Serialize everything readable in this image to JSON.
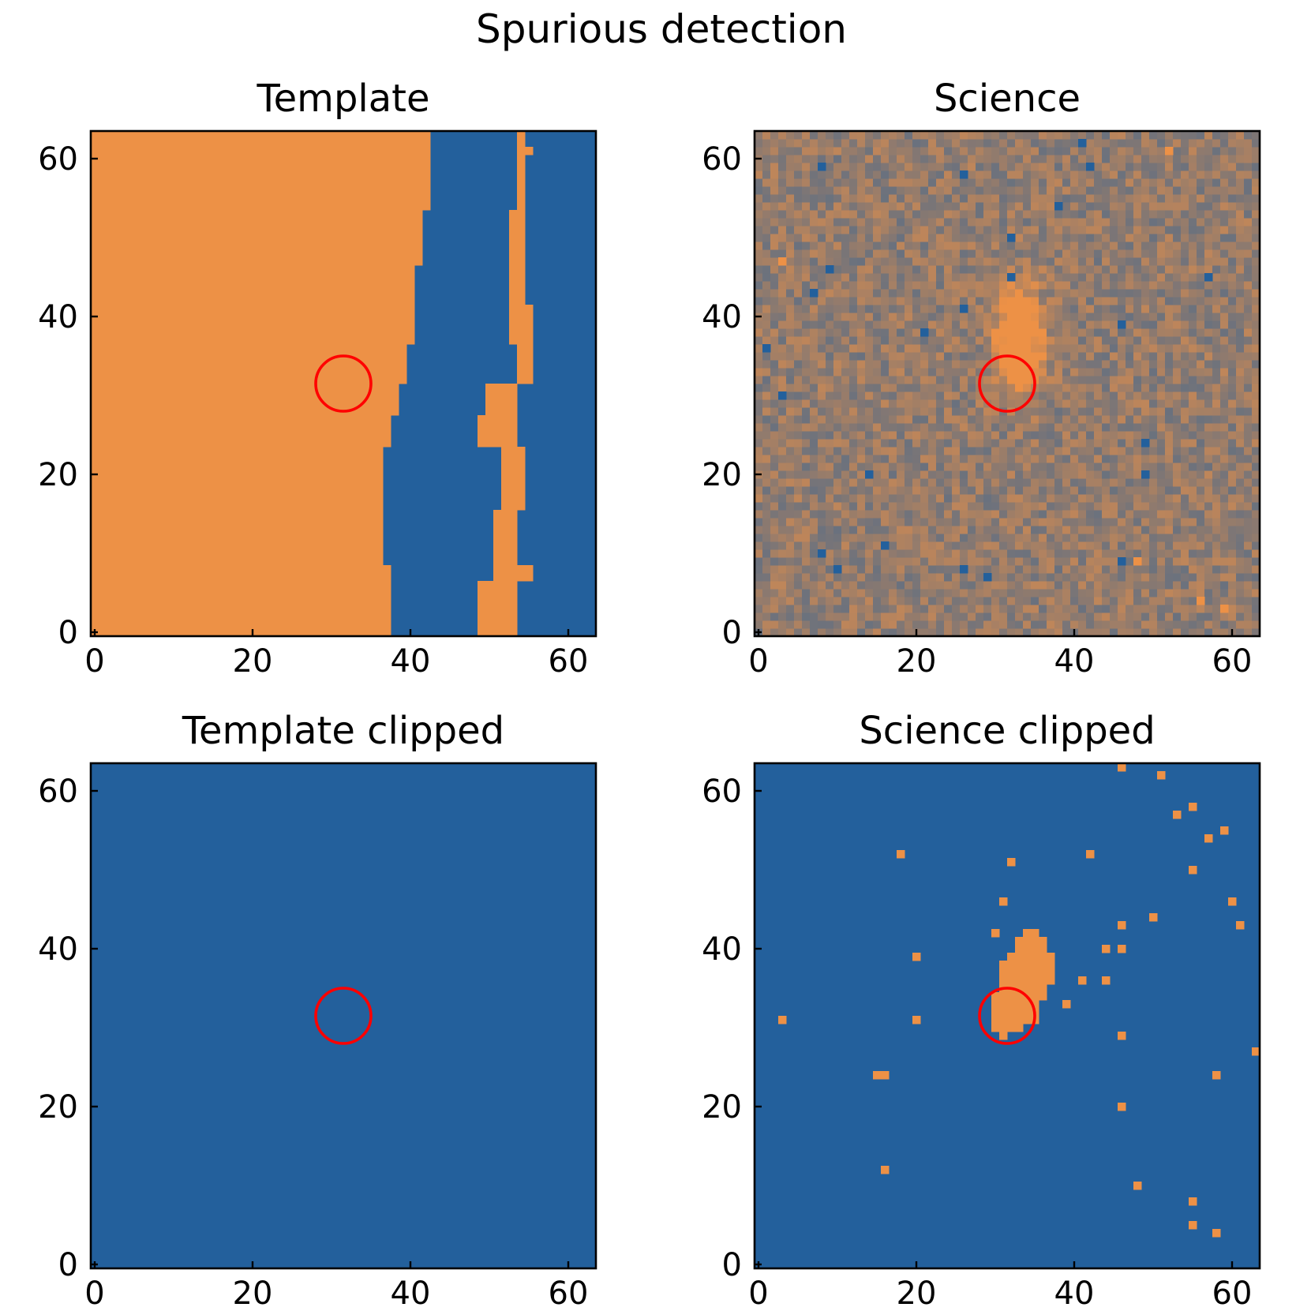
{
  "figure_title": "Spurious detection",
  "colors": {
    "low": "#23609c",
    "high": "#ed9146",
    "marker": "#ff0000",
    "axis": "#000000"
  },
  "chart_data": [
    {
      "type": "heatmap",
      "title": "Template",
      "image_size": 64,
      "xlim": [
        -0.5,
        63.5
      ],
      "ylim": [
        -0.5,
        63.5
      ],
      "xticks": [
        0,
        20,
        40,
        60
      ],
      "yticks": [
        0,
        20,
        40,
        60
      ],
      "xtick_labels": [
        "0",
        "20",
        "40",
        "60"
      ],
      "ytick_labels": [
        "0",
        "20",
        "40",
        "60"
      ],
      "description": "high values left of a vertical boundary near x 37-42, a narrow high stripe near x 50-55",
      "bands": [
        {
          "y0": 0,
          "y1": 7,
          "segments": [
            [
              0,
              38,
              "high"
            ],
            [
              38,
              49,
              "low"
            ],
            [
              49,
              54,
              "high"
            ],
            [
              54,
              64,
              "low"
            ]
          ]
        },
        {
          "y0": 7,
          "y1": 9,
          "segments": [
            [
              0,
              38,
              "high"
            ],
            [
              38,
              51,
              "low"
            ],
            [
              51,
              56,
              "high"
            ],
            [
              56,
              64,
              "low"
            ]
          ]
        },
        {
          "y0": 9,
          "y1": 16,
          "segments": [
            [
              0,
              37,
              "high"
            ],
            [
              37,
              51,
              "low"
            ],
            [
              51,
              54,
              "high"
            ],
            [
              54,
              64,
              "low"
            ]
          ]
        },
        {
          "y0": 16,
          "y1": 24,
          "segments": [
            [
              0,
              37,
              "high"
            ],
            [
              37,
              52,
              "low"
            ],
            [
              52,
              55,
              "high"
            ],
            [
              55,
              64,
              "low"
            ]
          ]
        },
        {
          "y0": 24,
          "y1": 28,
          "segments": [
            [
              0,
              38,
              "high"
            ],
            [
              38,
              49,
              "low"
            ],
            [
              49,
              54,
              "high"
            ],
            [
              54,
              64,
              "low"
            ]
          ]
        },
        {
          "y0": 28,
          "y1": 32,
          "segments": [
            [
              0,
              39,
              "high"
            ],
            [
              39,
              50,
              "low"
            ],
            [
              50,
              54,
              "high"
            ],
            [
              54,
              64,
              "low"
            ]
          ]
        },
        {
          "y0": 32,
          "y1": 37,
          "segments": [
            [
              0,
              40,
              "high"
            ],
            [
              40,
              54,
              "low"
            ],
            [
              54,
              56,
              "high"
            ],
            [
              56,
              64,
              "low"
            ]
          ]
        },
        {
          "y0": 37,
          "y1": 42,
          "segments": [
            [
              0,
              41,
              "high"
            ],
            [
              41,
              53,
              "low"
            ],
            [
              53,
              56,
              "high"
            ],
            [
              56,
              64,
              "low"
            ]
          ]
        },
        {
          "y0": 42,
          "y1": 47,
          "segments": [
            [
              0,
              41,
              "high"
            ],
            [
              41,
              53,
              "low"
            ],
            [
              53,
              55,
              "high"
            ],
            [
              55,
              64,
              "low"
            ]
          ]
        },
        {
          "y0": 47,
          "y1": 54,
          "segments": [
            [
              0,
              42,
              "high"
            ],
            [
              42,
              53,
              "low"
            ],
            [
              53,
              55,
              "high"
            ],
            [
              55,
              64,
              "low"
            ]
          ]
        },
        {
          "y0": 54,
          "y1": 56,
          "segments": [
            [
              0,
              43,
              "high"
            ],
            [
              43,
              54,
              "low"
            ],
            [
              54,
              55,
              "high"
            ],
            [
              55,
              64,
              "low"
            ]
          ]
        },
        {
          "y0": 56,
          "y1": 61,
          "segments": [
            [
              0,
              43,
              "high"
            ],
            [
              43,
              54,
              "low"
            ],
            [
              54,
              55,
              "high"
            ],
            [
              55,
              64,
              "low"
            ]
          ]
        },
        {
          "y0": 61,
          "y1": 62,
          "segments": [
            [
              0,
              43,
              "high"
            ],
            [
              43,
              54,
              "low"
            ],
            [
              54,
              56,
              "high"
            ],
            [
              56,
              64,
              "low"
            ]
          ]
        },
        {
          "y0": 62,
          "y1": 64,
          "segments": [
            [
              0,
              43,
              "high"
            ],
            [
              43,
              54,
              "low"
            ],
            [
              54,
              55,
              "high"
            ],
            [
              55,
              64,
              "low"
            ]
          ]
        }
      ],
      "circle": {
        "x": 31.5,
        "y": 31.5,
        "radius": 3.5
      }
    },
    {
      "type": "heatmap",
      "title": "Science",
      "image_size": 64,
      "xlim": [
        -0.5,
        63.5
      ],
      "ylim": [
        -0.5,
        63.5
      ],
      "xticks": [
        0,
        20,
        40,
        60
      ],
      "yticks": [
        0,
        20,
        40,
        60
      ],
      "xtick_labels": [
        "0",
        "20",
        "40",
        "60"
      ],
      "ytick_labels": [
        "0",
        "20",
        "40",
        "60"
      ],
      "description": "noisy background with a bright elongated source at about (33, 37)",
      "source": {
        "x": 33,
        "y": 37,
        "sigma_x": 2.0,
        "sigma_y": 4.5,
        "peak": 0.9
      },
      "low_pixels": [
        [
          8,
          59
        ],
        [
          26,
          58
        ],
        [
          42,
          59
        ],
        [
          38,
          54
        ],
        [
          32,
          50
        ],
        [
          9,
          46
        ],
        [
          7,
          43
        ],
        [
          32,
          45
        ],
        [
          26,
          41
        ],
        [
          21,
          38
        ],
        [
          46,
          39
        ],
        [
          1,
          36
        ],
        [
          3,
          30
        ],
        [
          49,
          24
        ],
        [
          14,
          20
        ],
        [
          49,
          20
        ],
        [
          16,
          11
        ],
        [
          8,
          10
        ],
        [
          10,
          8
        ],
        [
          26,
          8
        ],
        [
          29,
          7
        ],
        [
          46,
          9
        ],
        [
          57,
          45
        ],
        [
          41,
          62
        ]
      ],
      "high_pixels": [
        [
          52,
          61
        ],
        [
          48,
          9
        ],
        [
          56,
          4
        ],
        [
          59,
          3
        ],
        [
          3,
          47
        ]
      ],
      "circle": {
        "x": 31.5,
        "y": 31.5,
        "radius": 3.5
      }
    },
    {
      "type": "heatmap",
      "title": "Template clipped",
      "image_size": 64,
      "xlim": [
        -0.5,
        63.5
      ],
      "ylim": [
        -0.5,
        63.5
      ],
      "xticks": [
        0,
        20,
        40,
        60
      ],
      "yticks": [
        0,
        20,
        40,
        60
      ],
      "xtick_labels": [
        "0",
        "20",
        "40",
        "60"
      ],
      "ytick_labels": [
        "0",
        "20",
        "40",
        "60"
      ],
      "description": "uniformly low after clipping",
      "circle": {
        "x": 31.5,
        "y": 31.5,
        "radius": 3.5
      }
    },
    {
      "type": "heatmap",
      "title": "Science clipped",
      "image_size": 64,
      "xlim": [
        -0.5,
        63.5
      ],
      "ylim": [
        -0.5,
        63.5
      ],
      "xticks": [
        0,
        20,
        40,
        60
      ],
      "yticks": [
        0,
        20,
        40,
        60
      ],
      "xtick_labels": [
        "0",
        "20",
        "40",
        "60"
      ],
      "ytick_labels": [
        "0",
        "20",
        "40",
        "60"
      ],
      "description": "low background with a high blob at the source position and scattered high pixels",
      "blob_rows": [
        {
          "y": 29,
          "x0": 31,
          "x1": 31
        },
        {
          "y": 30,
          "x0": 30,
          "x1": 33
        },
        {
          "y": 31,
          "x0": 30,
          "x1": 35
        },
        {
          "y": 32,
          "x0": 30,
          "x1": 35
        },
        {
          "y": 33,
          "x0": 30,
          "x1": 35
        },
        {
          "y": 34,
          "x0": 30,
          "x1": 36
        },
        {
          "y": 35,
          "x0": 31,
          "x1": 36
        },
        {
          "y": 36,
          "x0": 31,
          "x1": 37
        },
        {
          "y": 37,
          "x0": 31,
          "x1": 37
        },
        {
          "y": 38,
          "x0": 31,
          "x1": 37
        },
        {
          "y": 39,
          "x0": 32,
          "x1": 37
        },
        {
          "y": 40,
          "x0": 33,
          "x1": 36
        },
        {
          "y": 41,
          "x0": 33,
          "x1": 36
        },
        {
          "y": 42,
          "x0": 34,
          "x1": 35
        }
      ],
      "high_pixels": [
        [
          46,
          63
        ],
        [
          51,
          62
        ],
        [
          55,
          58
        ],
        [
          53,
          57
        ],
        [
          59,
          55
        ],
        [
          57,
          54
        ],
        [
          18,
          52
        ],
        [
          42,
          52
        ],
        [
          32,
          51
        ],
        [
          55,
          50
        ],
        [
          31,
          46
        ],
        [
          60,
          46
        ],
        [
          50,
          44
        ],
        [
          61,
          43
        ],
        [
          46,
          43
        ],
        [
          30,
          42
        ],
        [
          44,
          40
        ],
        [
          46,
          40
        ],
        [
          20,
          39
        ],
        [
          41,
          36
        ],
        [
          44,
          36
        ],
        [
          39,
          33
        ],
        [
          3,
          31
        ],
        [
          20,
          31
        ],
        [
          46,
          29
        ],
        [
          63,
          27
        ],
        [
          15,
          24
        ],
        [
          16,
          24
        ],
        [
          58,
          24
        ],
        [
          46,
          20
        ],
        [
          16,
          12
        ],
        [
          48,
          10
        ],
        [
          55,
          8
        ],
        [
          55,
          5
        ],
        [
          58,
          4
        ]
      ],
      "circle": {
        "x": 31.5,
        "y": 31.5,
        "radius": 3.5
      }
    }
  ]
}
